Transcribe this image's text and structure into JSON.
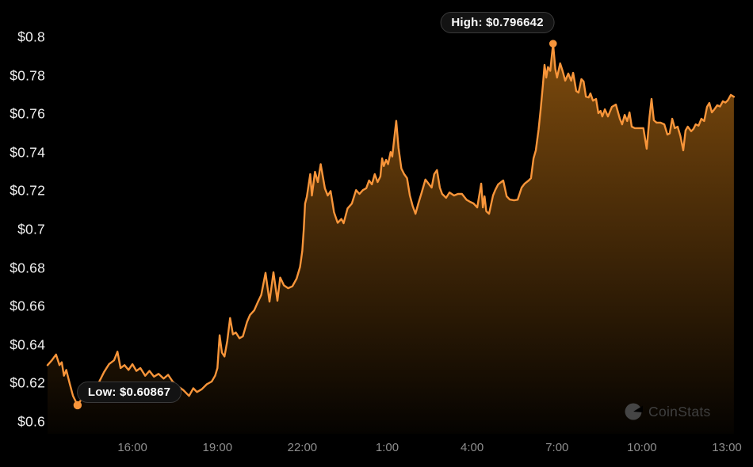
{
  "colors": {
    "background": "#000000",
    "line": "#f8953a",
    "fill": "#f7931a",
    "y_label": "#f0f0f0",
    "x_label": "#8e8e8e",
    "tooltip_bg": "#131313",
    "tooltip_border": "#3a3a3a",
    "tooltip_text": "#fafafa",
    "watermark": "#3f3f3f"
  },
  "watermark": {
    "text": "CoinStats",
    "icon": "pie-chart-logo"
  },
  "chart_data": {
    "type": "area",
    "title": "",
    "xlabel": "",
    "ylabel": "",
    "grid": false,
    "legend": false,
    "y_range": [
      0.6,
      0.8
    ],
    "x_range_hours": [
      0,
      24.25
    ],
    "y_ticks": [
      {
        "label": "$0.8",
        "value": 0.8
      },
      {
        "label": "$0.78",
        "value": 0.78
      },
      {
        "label": "$0.76",
        "value": 0.76
      },
      {
        "label": "$0.74",
        "value": 0.74
      },
      {
        "label": "$0.72",
        "value": 0.72
      },
      {
        "label": "$0.7",
        "value": 0.7
      },
      {
        "label": "$0.68",
        "value": 0.68
      },
      {
        "label": "$0.66",
        "value": 0.66
      },
      {
        "label": "$0.64",
        "value": 0.64
      },
      {
        "label": "$0.62",
        "value": 0.62
      },
      {
        "label": "$0.6",
        "value": 0.6
      }
    ],
    "x_ticks": [
      {
        "label": "16:00",
        "hour": 3
      },
      {
        "label": "19:00",
        "hour": 6
      },
      {
        "label": "22:00",
        "hour": 9
      },
      {
        "label": "1:00",
        "hour": 12
      },
      {
        "label": "4:00",
        "hour": 15
      },
      {
        "label": "7:00",
        "hour": 18
      },
      {
        "label": "10:00",
        "hour": 21
      },
      {
        "label": "13:00",
        "hour": 24
      }
    ],
    "annotations": {
      "high": {
        "label": "High: $0.796642",
        "value": 0.796642,
        "hour": 17.86
      },
      "low": {
        "label": "Low: $0.60867",
        "value": 0.60867,
        "hour": 1.06
      }
    },
    "series": [
      {
        "name": "price",
        "points": [
          [
            0.0,
            0.6295
          ],
          [
            0.15,
            0.632
          ],
          [
            0.3,
            0.635
          ],
          [
            0.42,
            0.6295
          ],
          [
            0.5,
            0.631
          ],
          [
            0.58,
            0.624
          ],
          [
            0.66,
            0.627
          ],
          [
            0.78,
            0.62
          ],
          [
            0.9,
            0.6135
          ],
          [
            1.06,
            0.60867
          ],
          [
            1.2,
            0.6118
          ],
          [
            1.35,
            0.613
          ],
          [
            1.5,
            0.6115
          ],
          [
            1.66,
            0.615
          ],
          [
            1.83,
            0.621
          ],
          [
            2.0,
            0.626
          ],
          [
            2.17,
            0.63
          ],
          [
            2.35,
            0.632
          ],
          [
            2.47,
            0.6365
          ],
          [
            2.58,
            0.628
          ],
          [
            2.72,
            0.6295
          ],
          [
            2.86,
            0.627
          ],
          [
            3.0,
            0.63
          ],
          [
            3.14,
            0.6265
          ],
          [
            3.28,
            0.628
          ],
          [
            3.45,
            0.624
          ],
          [
            3.6,
            0.6265
          ],
          [
            3.76,
            0.6235
          ],
          [
            3.92,
            0.625
          ],
          [
            4.1,
            0.6225
          ],
          [
            4.26,
            0.6245
          ],
          [
            4.42,
            0.621
          ],
          [
            4.6,
            0.6185
          ],
          [
            4.8,
            0.6165
          ],
          [
            5.0,
            0.6135
          ],
          [
            5.15,
            0.6175
          ],
          [
            5.28,
            0.6155
          ],
          [
            5.45,
            0.617
          ],
          [
            5.62,
            0.6195
          ],
          [
            5.8,
            0.621
          ],
          [
            5.92,
            0.624
          ],
          [
            6.0,
            0.628
          ],
          [
            6.08,
            0.645
          ],
          [
            6.16,
            0.636
          ],
          [
            6.25,
            0.634
          ],
          [
            6.35,
            0.642
          ],
          [
            6.45,
            0.654
          ],
          [
            6.55,
            0.6455
          ],
          [
            6.65,
            0.6465
          ],
          [
            6.78,
            0.6435
          ],
          [
            6.9,
            0.6445
          ],
          [
            7.05,
            0.652
          ],
          [
            7.15,
            0.6555
          ],
          [
            7.3,
            0.658
          ],
          [
            7.42,
            0.662
          ],
          [
            7.55,
            0.666
          ],
          [
            7.7,
            0.6775
          ],
          [
            7.84,
            0.6625
          ],
          [
            7.98,
            0.6778
          ],
          [
            8.12,
            0.663
          ],
          [
            8.22,
            0.675
          ],
          [
            8.35,
            0.671
          ],
          [
            8.5,
            0.6695
          ],
          [
            8.65,
            0.6705
          ],
          [
            8.8,
            0.6745
          ],
          [
            8.92,
            0.6805
          ],
          [
            9.0,
            0.689
          ],
          [
            9.05,
            0.7
          ],
          [
            9.1,
            0.7135
          ],
          [
            9.16,
            0.717
          ],
          [
            9.28,
            0.7288
          ],
          [
            9.34,
            0.7177
          ],
          [
            9.45,
            0.73
          ],
          [
            9.55,
            0.7247
          ],
          [
            9.65,
            0.734
          ],
          [
            9.8,
            0.7214
          ],
          [
            9.9,
            0.7177
          ],
          [
            10.0,
            0.72
          ],
          [
            10.12,
            0.709
          ],
          [
            10.25,
            0.7035
          ],
          [
            10.38,
            0.7055
          ],
          [
            10.46,
            0.7033
          ],
          [
            10.6,
            0.711
          ],
          [
            10.75,
            0.7135
          ],
          [
            10.9,
            0.7205
          ],
          [
            11.02,
            0.7185
          ],
          [
            11.14,
            0.7205
          ],
          [
            11.26,
            0.7215
          ],
          [
            11.36,
            0.7255
          ],
          [
            11.46,
            0.7235
          ],
          [
            11.56,
            0.7288
          ],
          [
            11.66,
            0.7247
          ],
          [
            11.76,
            0.7276
          ],
          [
            11.82,
            0.737
          ],
          [
            11.88,
            0.733
          ],
          [
            11.96,
            0.7362
          ],
          [
            12.03,
            0.734
          ],
          [
            12.12,
            0.7403
          ],
          [
            12.18,
            0.738
          ],
          [
            12.27,
            0.75
          ],
          [
            12.32,
            0.7565
          ],
          [
            12.4,
            0.7424
          ],
          [
            12.5,
            0.7317
          ],
          [
            12.6,
            0.7288
          ],
          [
            12.7,
            0.7267
          ],
          [
            12.8,
            0.7177
          ],
          [
            12.9,
            0.7123
          ],
          [
            13.0,
            0.7082
          ],
          [
            13.1,
            0.7136
          ],
          [
            13.22,
            0.7194
          ],
          [
            13.35,
            0.726
          ],
          [
            13.48,
            0.7235
          ],
          [
            13.57,
            0.7218
          ],
          [
            13.66,
            0.7288
          ],
          [
            13.76,
            0.7309
          ],
          [
            13.86,
            0.7218
          ],
          [
            13.94,
            0.7185
          ],
          [
            14.08,
            0.7165
          ],
          [
            14.2,
            0.7193
          ],
          [
            14.36,
            0.7177
          ],
          [
            14.5,
            0.7185
          ],
          [
            14.64,
            0.7185
          ],
          [
            14.8,
            0.7155
          ],
          [
            14.93,
            0.7144
          ],
          [
            15.05,
            0.7136
          ],
          [
            15.18,
            0.7115
          ],
          [
            15.32,
            0.7239
          ],
          [
            15.38,
            0.7115
          ],
          [
            15.44,
            0.7173
          ],
          [
            15.5,
            0.7095
          ],
          [
            15.6,
            0.7082
          ],
          [
            15.74,
            0.7177
          ],
          [
            15.82,
            0.7206
          ],
          [
            15.92,
            0.7235
          ],
          [
            16.1,
            0.7255
          ],
          [
            16.22,
            0.7173
          ],
          [
            16.33,
            0.7156
          ],
          [
            16.48,
            0.7152
          ],
          [
            16.61,
            0.7155
          ],
          [
            16.75,
            0.7218
          ],
          [
            16.86,
            0.7239
          ],
          [
            17.0,
            0.7255
          ],
          [
            17.08,
            0.7267
          ],
          [
            17.17,
            0.737
          ],
          [
            17.25,
            0.7412
          ],
          [
            17.35,
            0.752
          ],
          [
            17.42,
            0.762
          ],
          [
            17.5,
            0.775
          ],
          [
            17.56,
            0.7856
          ],
          [
            17.62,
            0.779
          ],
          [
            17.68,
            0.7845
          ],
          [
            17.76,
            0.7825
          ],
          [
            17.86,
            0.796642
          ],
          [
            17.94,
            0.7835
          ],
          [
            18.0,
            0.779
          ],
          [
            18.11,
            0.7864
          ],
          [
            18.2,
            0.7823
          ],
          [
            18.29,
            0.7774
          ],
          [
            18.4,
            0.7811
          ],
          [
            18.5,
            0.7774
          ],
          [
            18.57,
            0.7815
          ],
          [
            18.68,
            0.772
          ],
          [
            18.76,
            0.7712
          ],
          [
            18.86,
            0.7782
          ],
          [
            18.94,
            0.777
          ],
          [
            19.02,
            0.7691
          ],
          [
            19.12,
            0.7687
          ],
          [
            19.18,
            0.7708
          ],
          [
            19.27,
            0.767
          ],
          [
            19.38,
            0.7679
          ],
          [
            19.46,
            0.7605
          ],
          [
            19.54,
            0.7617
          ],
          [
            19.6,
            0.7588
          ],
          [
            19.69,
            0.7625
          ],
          [
            19.8,
            0.7588
          ],
          [
            19.94,
            0.7638
          ],
          [
            20.08,
            0.765
          ],
          [
            20.22,
            0.7576
          ],
          [
            20.3,
            0.7547
          ],
          [
            20.39,
            0.7596
          ],
          [
            20.48,
            0.7564
          ],
          [
            20.56,
            0.7609
          ],
          [
            20.64,
            0.7535
          ],
          [
            20.75,
            0.7527
          ],
          [
            20.9,
            0.7527
          ],
          [
            21.05,
            0.7527
          ],
          [
            21.17,
            0.742
          ],
          [
            21.27,
            0.7588
          ],
          [
            21.34,
            0.7679
          ],
          [
            21.42,
            0.7568
          ],
          [
            21.52,
            0.7556
          ],
          [
            21.65,
            0.7556
          ],
          [
            21.79,
            0.7547
          ],
          [
            21.9,
            0.7494
          ],
          [
            21.98,
            0.75
          ],
          [
            22.07,
            0.7576
          ],
          [
            22.16,
            0.7527
          ],
          [
            22.26,
            0.7535
          ],
          [
            22.36,
            0.7486
          ],
          [
            22.46,
            0.7412
          ],
          [
            22.54,
            0.7515
          ],
          [
            22.62,
            0.7535
          ],
          [
            22.74,
            0.7511
          ],
          [
            22.82,
            0.7523
          ],
          [
            22.9,
            0.7547
          ],
          [
            23.0,
            0.754
          ],
          [
            23.1,
            0.7576
          ],
          [
            23.2,
            0.7564
          ],
          [
            23.3,
            0.7638
          ],
          [
            23.38,
            0.7658
          ],
          [
            23.47,
            0.7609
          ],
          [
            23.56,
            0.7625
          ],
          [
            23.66,
            0.7646
          ],
          [
            23.76,
            0.764
          ],
          [
            23.86,
            0.7667
          ],
          [
            23.95,
            0.766
          ],
          [
            24.03,
            0.7671
          ],
          [
            24.14,
            0.77
          ],
          [
            24.25,
            0.769
          ]
        ]
      }
    ]
  }
}
